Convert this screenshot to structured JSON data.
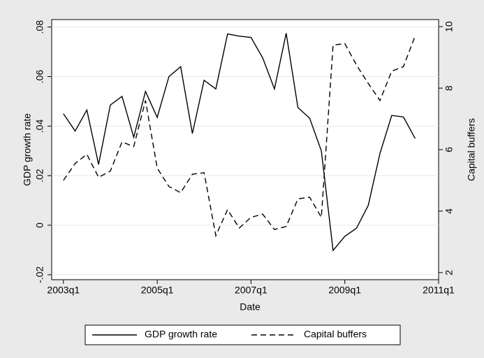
{
  "chart_data": {
    "type": "line",
    "x": [
      "2003q1",
      "2003q2",
      "2003q3",
      "2003q4",
      "2004q1",
      "2004q2",
      "2004q3",
      "2004q4",
      "2005q1",
      "2005q2",
      "2005q3",
      "2005q4",
      "2006q1",
      "2006q2",
      "2006q3",
      "2006q4",
      "2007q1",
      "2007q2",
      "2007q3",
      "2007q4",
      "2008q1",
      "2008q2",
      "2008q3",
      "2008q4",
      "2009q1",
      "2009q2",
      "2009q3",
      "2009q4",
      "2010q1",
      "2010q2",
      "2010q3"
    ],
    "series": [
      {
        "name": "GDP growth rate",
        "color": "#000000",
        "style": "solid",
        "axis": "y",
        "values": [
          0.045,
          0.038,
          0.0465,
          0.0245,
          0.0485,
          0.052,
          0.0355,
          0.054,
          0.0435,
          0.06,
          0.064,
          0.037,
          0.0585,
          0.055,
          0.0772,
          0.0763,
          0.0758,
          0.0675,
          0.055,
          0.0775,
          0.0475,
          0.0432,
          0.03,
          -0.0102,
          -0.0045,
          -0.0012,
          0.008,
          0.029,
          0.0443,
          0.0437,
          0.035
        ]
      },
      {
        "name": "Capital buffers",
        "color": "#000000",
        "style": "dashed",
        "axis": "y2",
        "values": [
          5.0,
          5.55,
          5.85,
          5.1,
          5.3,
          6.25,
          6.1,
          7.6,
          5.4,
          4.8,
          4.6,
          5.2,
          5.25,
          3.2,
          4.05,
          3.45,
          3.8,
          3.9,
          3.4,
          3.5,
          4.4,
          4.45,
          3.8,
          9.4,
          9.45,
          8.75,
          8.15,
          7.6,
          8.55,
          8.7,
          9.7
        ]
      }
    ],
    "xlabel": "Date",
    "ylabel": "GDP growth rate",
    "y2label": "Capital buffers",
    "xlim": [
      "2002q4",
      "2011q1"
    ],
    "xticks": [
      "2003q1",
      "2005q1",
      "2007q1",
      "2009q1",
      "2011q1"
    ],
    "ylim": [
      -0.022,
      0.083
    ],
    "yticks": [
      {
        "value": -0.02,
        "label": "-.02"
      },
      0,
      {
        "value": 0.02,
        "label": ".02"
      },
      {
        "value": 0.04,
        "label": ".04"
      },
      {
        "value": 0.06,
        "label": ".06"
      },
      {
        "value": 0.08,
        "label": ".08"
      }
    ],
    "y2lim": [
      1.77,
      10.23
    ],
    "y2ticks": [
      2,
      4,
      6,
      8,
      10
    ],
    "grid": true,
    "legend": "bottom"
  }
}
